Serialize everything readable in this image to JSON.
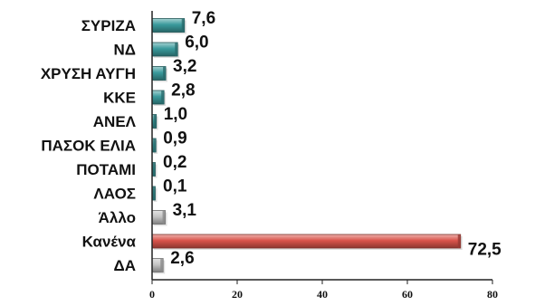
{
  "chart_data": {
    "type": "bar",
    "orientation": "horizontal",
    "title": "",
    "xlabel": "",
    "ylabel": "",
    "categories": [
      "ΣΥΡΙΖΑ",
      "ΝΔ",
      "ΧΡΥΣΗ ΑΥΓΗ",
      "ΚΚΕ",
      "ΑΝΕΛ",
      "ΠΑΣΟΚ ΕΛΙΑ",
      "ΠΟΤΑΜΙ",
      "ΛΑΟΣ",
      "Άλλο",
      "Κανένα",
      "ΔΑ"
    ],
    "values": [
      7.6,
      6.0,
      3.2,
      2.8,
      1.0,
      0.9,
      0.2,
      0.1,
      3.1,
      72.5,
      2.6
    ],
    "value_labels": [
      "7,6",
      "6,0",
      "3,2",
      "2,8",
      "1,0",
      "0,9",
      "0,2",
      "0,1",
      "3,1",
      "72,5",
      "2,6"
    ],
    "bar_colors": [
      "#3a9a9c",
      "#3a9a9c",
      "#3a9a9c",
      "#3a9a9c",
      "#3a9a9c",
      "#3a9a9c",
      "#3a9a9c",
      "#3a9a9c",
      "#c4c4c4",
      "#d9534a",
      "#c4c4c4"
    ],
    "xlim": [
      0,
      80
    ],
    "xticks": [
      0,
      20,
      40,
      60,
      80
    ],
    "grid": false,
    "legend": "none"
  }
}
